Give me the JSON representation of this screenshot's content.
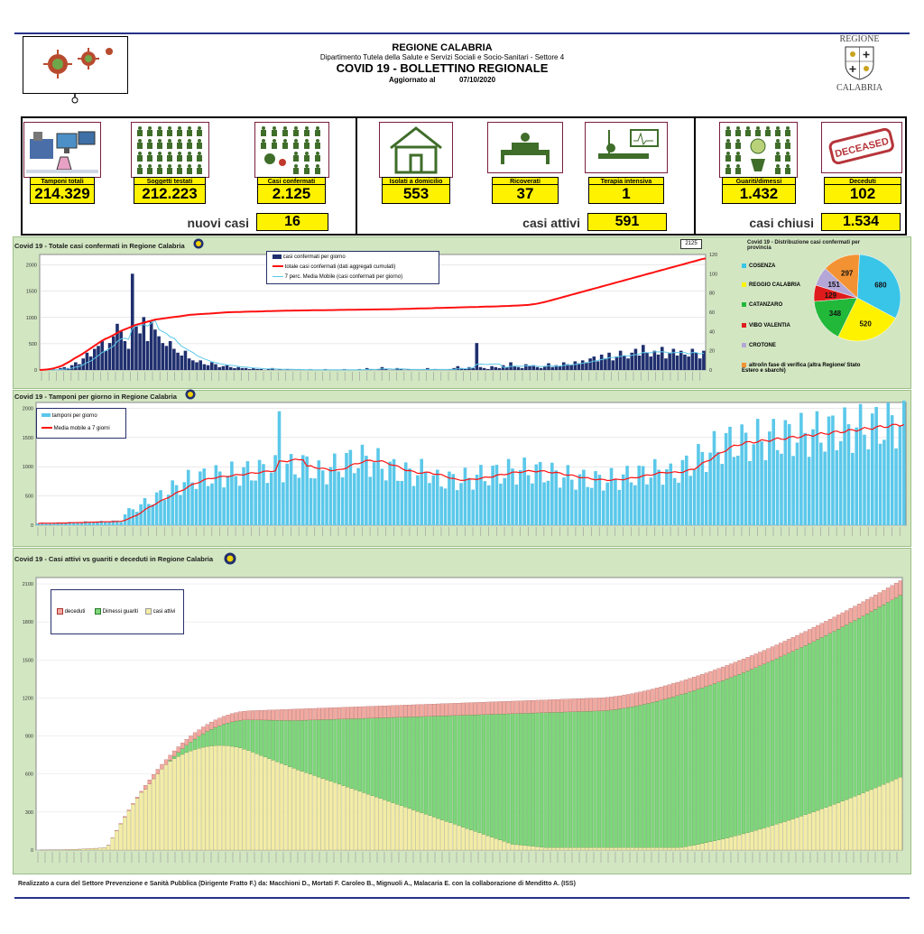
{
  "header": {
    "org": "REGIONE CALABRIA",
    "dept": "Dipartimento Tutela della Salute e Servizi Sociali e Socio-Sanitari - Settore 4",
    "title": "COVID 19 - BOLLETTINO REGIONALE",
    "updated_label": "Aggiornato al",
    "updated_date": "07/10/2020",
    "logo_top": "REGIONE",
    "logo_bottom": "CALABRIA"
  },
  "kpis": {
    "tamponi": {
      "label": "Tamponi totali",
      "value": "214.329"
    },
    "soggetti": {
      "label": "Soggetti testati",
      "value": "212.223"
    },
    "confermati": {
      "label": "Casi confermati",
      "value": "2.125"
    },
    "isolati": {
      "label": "Isolati a domicilio",
      "value": "553"
    },
    "ricoverati": {
      "label": "Ricoverati",
      "value": "37"
    },
    "terapia": {
      "label": "Terapia intensiva",
      "value": "1"
    },
    "guariti": {
      "label": "Guariti/dimessi",
      "value": "1.432"
    },
    "deceduti": {
      "label": "Deceduti",
      "value": "102"
    },
    "deceased_stamp": "DECEASED"
  },
  "summary": {
    "nuovi_label": "nuovi casi",
    "nuovi_value": "16",
    "attivi_label": "casi attivi",
    "attivi_value": "591",
    "chiusi_label": "casi chiusi",
    "chiusi_value": "1.534"
  },
  "colors": {
    "navy": "#1f2f6e",
    "red": "#ff1010",
    "cyan": "#5bc8ea",
    "green_panel": "#d2e6c2",
    "yellow": "#fff200",
    "deceduti": "#f1a9a0",
    "guariti": "#7ed67a",
    "attivi": "#f3eca6"
  },
  "chart_data": [
    {
      "type": "bar",
      "title": "Covid 19 - Totale casi confermati in Regione Calabria",
      "y_left_ticks": [
        "2000",
        "1500",
        "1000",
        "500",
        "0"
      ],
      "y_right_ticks": [
        "120",
        "100",
        "80",
        "60",
        "40",
        "20",
        "0"
      ],
      "ylim": [
        0,
        2200
      ],
      "ylim_right": [
        0,
        120
      ],
      "end_label": "2125",
      "series": [
        {
          "name": "casi confermati per giorno",
          "color": "#1f2f6e",
          "axis": "right",
          "values": [
            0,
            0,
            0,
            1,
            0,
            2,
            3,
            2,
            5,
            8,
            6,
            12,
            18,
            14,
            22,
            25,
            30,
            20,
            28,
            35,
            48,
            40,
            30,
            22,
            100,
            45,
            38,
            55,
            30,
            50,
            42,
            35,
            28,
            25,
            30,
            22,
            18,
            15,
            20,
            12,
            10,
            8,
            10,
            6,
            5,
            8,
            6,
            3,
            4,
            5,
            3,
            2,
            3,
            2,
            2,
            1,
            2,
            1,
            1,
            0,
            1,
            2,
            0,
            1,
            0,
            1,
            0,
            0,
            1,
            0,
            0,
            1,
            0,
            0,
            0,
            1,
            0,
            0,
            0,
            0,
            1,
            0,
            0,
            0,
            1,
            0,
            2,
            1,
            0,
            1,
            3,
            1,
            0,
            0,
            2,
            1,
            0,
            1,
            0,
            0,
            0,
            1,
            2,
            0,
            1,
            0,
            0,
            0,
            1,
            2,
            4,
            2,
            1,
            3,
            2,
            28,
            3,
            2,
            1,
            4,
            3,
            2,
            5,
            3,
            8,
            4,
            3,
            2,
            6,
            4,
            5,
            3,
            2,
            4,
            7,
            3,
            5,
            4,
            8,
            6,
            5,
            9,
            7,
            10,
            8,
            12,
            14,
            9,
            16,
            12,
            18,
            10,
            14,
            20,
            15,
            12,
            18,
            22,
            15,
            26,
            18,
            14,
            20,
            16,
            24,
            12,
            18,
            22,
            15,
            20,
            16,
            14,
            22,
            18,
            12,
            20
          ]
        },
        {
          "name": "totale casi confermati (dati aggregati cumulati)",
          "color": "#ff1010",
          "axis": "left",
          "values": [
            0,
            5,
            10,
            20,
            40,
            60,
            90,
            130,
            170,
            220,
            260,
            300,
            350,
            400,
            450,
            500,
            550,
            590,
            620,
            660,
            700,
            740,
            770,
            800,
            830,
            860,
            880,
            900,
            920,
            940,
            960,
            970,
            980,
            990,
            1000,
            1010,
            1020,
            1030,
            1040,
            1050,
            1055,
            1060,
            1065,
            1070,
            1075,
            1080,
            1085,
            1090,
            1095,
            1100,
            1102,
            1104,
            1106,
            1108,
            1110,
            1112,
            1114,
            1116,
            1118,
            1120,
            1122,
            1124,
            1126,
            1128,
            1130,
            1131,
            1132,
            1133,
            1134,
            1135,
            1136,
            1137,
            1138,
            1139,
            1140,
            1141,
            1142,
            1143,
            1144,
            1145,
            1146,
            1147,
            1148,
            1149,
            1150,
            1151,
            1152,
            1153,
            1154,
            1155,
            1156,
            1157,
            1158,
            1160,
            1162,
            1164,
            1166,
            1168,
            1170,
            1172,
            1174,
            1176,
            1178,
            1180,
            1182,
            1184,
            1186,
            1188,
            1190,
            1192,
            1194,
            1196,
            1198,
            1200,
            1202,
            1204,
            1206,
            1208,
            1210,
            1212,
            1215,
            1218,
            1221,
            1224,
            1227,
            1230,
            1235,
            1240,
            1250,
            1260,
            1275,
            1290,
            1310,
            1330,
            1350,
            1370,
            1390,
            1410,
            1430,
            1450,
            1470,
            1490,
            1510,
            1530,
            1550,
            1570,
            1590,
            1610,
            1630,
            1650,
            1670,
            1690,
            1710,
            1730,
            1750,
            1770,
            1790,
            1810,
            1830,
            1850,
            1870,
            1890,
            1910,
            1930,
            1950,
            1970,
            1990,
            2010,
            2030,
            2050,
            2070,
            2090,
            2110,
            2125
          ]
        },
        {
          "name": "7 perc. Media Mobile (casi confermati per giorno)",
          "color": "#5bc8ea",
          "axis": "right"
        }
      ]
    },
    {
      "type": "pie",
      "title": "Covid 19 - Distribuzione casi confermati per provincia",
      "slices": [
        {
          "label": "COSENZA",
          "value": 680,
          "color": "#39c5e8"
        },
        {
          "label": "REGGIO CALABRIA",
          "value": 520,
          "color": "#fff200"
        },
        {
          "label": "CATANZARO",
          "value": 348,
          "color": "#22b83a"
        },
        {
          "label": "VIBO VALENTIA",
          "value": 129,
          "color": "#e01b1b"
        },
        {
          "label": "CROTONE",
          "value": 151,
          "color": "#b4a6d6"
        },
        {
          "label": "altro/in fase di verifica (altra Regione/ Stato Estero e sbarchi)",
          "value": 297,
          "color": "#f39232"
        }
      ]
    },
    {
      "type": "bar",
      "title": "Covid 19 - Tamponi per giorno in Regione Calabria",
      "y_ticks": [
        "2000",
        "1500",
        "1000",
        "500",
        "0"
      ],
      "ylim": [
        0,
        2100
      ],
      "series": [
        {
          "name": "tamponi per giorno",
          "color": "#5bc8ea"
        },
        {
          "name": "Media mobile a 7 giorni",
          "color": "#ff1010"
        }
      ]
    },
    {
      "type": "bar",
      "title": "Covid 19 - Casi attivi vs guariti e deceduti in Regione Calabria",
      "y_ticks": [
        "2100",
        "1800",
        "1500",
        "1200",
        "900",
        "600",
        "300",
        "0"
      ],
      "ylim": [
        0,
        2150
      ],
      "series": [
        {
          "name": "deceduti",
          "color": "#f1a9a0"
        },
        {
          "name": "Dimessi guariti",
          "color": "#7ed67a"
        },
        {
          "name": "casi attivi",
          "color": "#f3eca6"
        }
      ]
    }
  ],
  "footer": "Realizzato a cura del Settore Prevenzione e Sanità Pubblica (Dirigente Fratto F.) da:  Macchioni D., Mortati F. Caroleo B., Mignuoli A., Malacaria E. con la collaborazione di Menditto A. (ISS)"
}
